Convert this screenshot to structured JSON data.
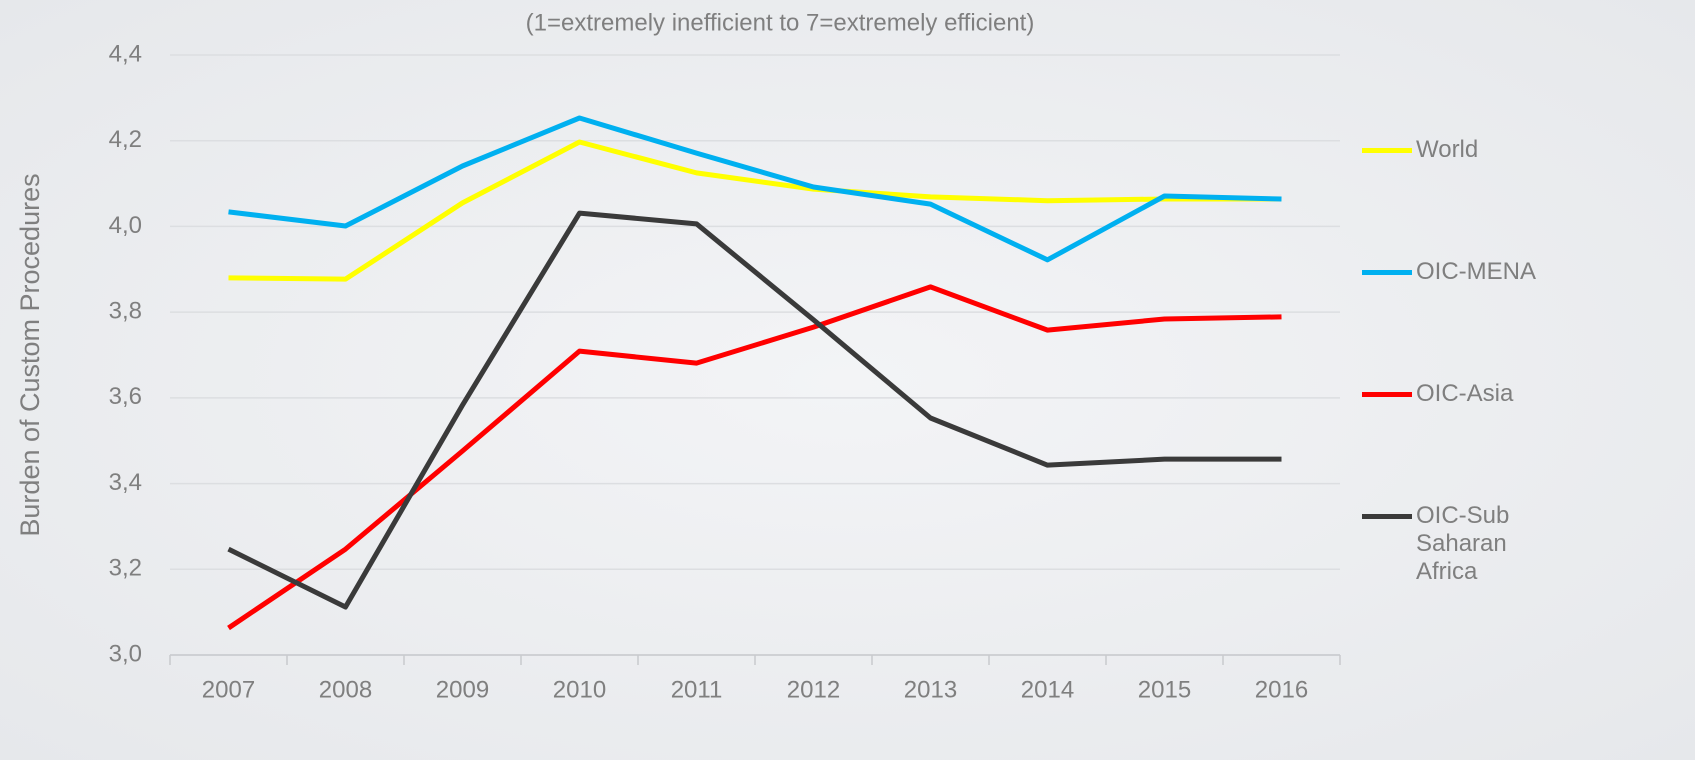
{
  "chart_data": {
    "type": "line",
    "subtitle": "(1=extremely inefficient to 7=extremely efficient)",
    "y_label": "Burden of Custom Procedures",
    "categories": [
      "2007",
      "2008",
      "2009",
      "2010",
      "2011",
      "2012",
      "2013",
      "2014",
      "2015",
      "2016"
    ],
    "series": [
      {
        "name": "World",
        "color": "#ffff00",
        "values": [
          3.88,
          3.877,
          4.055,
          4.197,
          4.125,
          4.087,
          4.069,
          4.06,
          4.064,
          4.064
        ]
      },
      {
        "name": "OIC-MENA",
        "color": "#00b0f0",
        "values": [
          4.034,
          4.001,
          4.141,
          4.253,
          4.171,
          4.092,
          4.052,
          3.922,
          4.071,
          4.064
        ]
      },
      {
        "name": "OIC-Asia",
        "color": "#ff0000",
        "values": [
          3.063,
          3.247,
          3.476,
          3.709,
          3.681,
          3.765,
          3.859,
          3.758,
          3.784,
          3.789
        ]
      },
      {
        "name": "OIC-Sub Saharan Africa",
        "color": "#3a3a3a",
        "values": [
          3.247,
          3.112,
          3.583,
          4.031,
          4.006,
          3.782,
          3.553,
          3.443,
          3.457,
          3.457
        ]
      }
    ],
    "ylim": [
      3.0,
      4.4
    ],
    "yticks": [
      {
        "value": 3.0,
        "label": "3,0"
      },
      {
        "value": 3.2,
        "label": "3,2"
      },
      {
        "value": 3.4,
        "label": "3,4"
      },
      {
        "value": 3.6,
        "label": "3,6"
      },
      {
        "value": 3.8,
        "label": "3,8"
      },
      {
        "value": 4.0,
        "label": "4,0"
      },
      {
        "value": 4.2,
        "label": "4,2"
      },
      {
        "value": 4.4,
        "label": "4,4"
      }
    ],
    "grid": true,
    "legend": "right"
  }
}
